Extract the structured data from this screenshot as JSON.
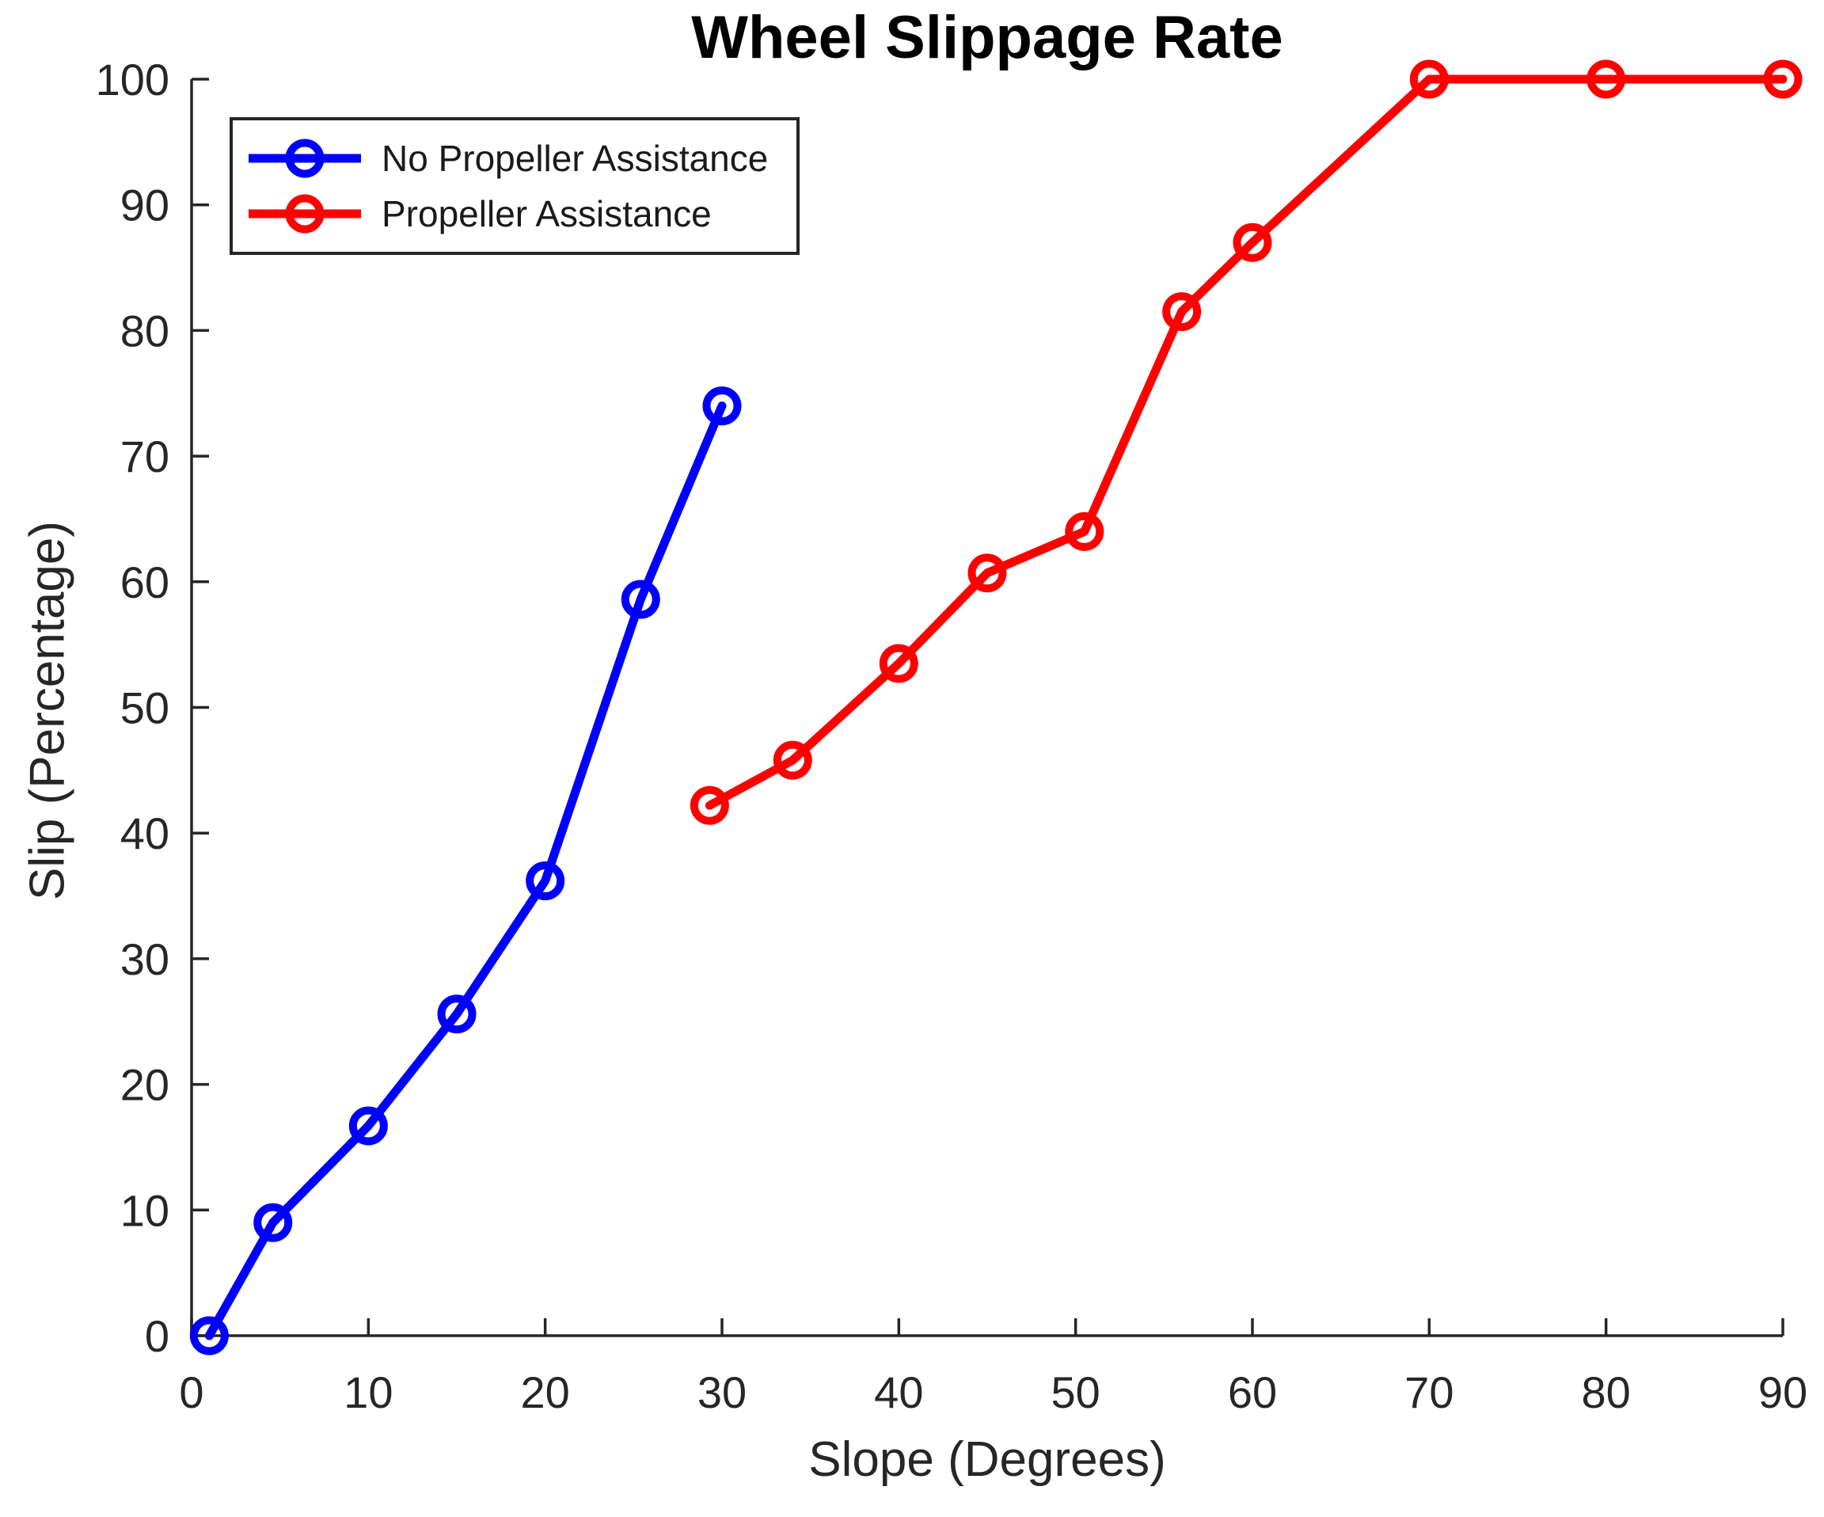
{
  "figure": {
    "background_color": "#ffffff",
    "axis_color": "#262626",
    "title_color": "#000000"
  },
  "chart_data": {
    "type": "line",
    "title": "Wheel Slippage Rate",
    "xlabel": "Slope (Degrees)",
    "ylabel": "Slip (Percentage)",
    "xlim": [
      0,
      90
    ],
    "ylim": [
      0,
      100
    ],
    "x_ticks": [
      0,
      10,
      20,
      30,
      40,
      50,
      60,
      70,
      80,
      90
    ],
    "y_ticks": [
      0,
      10,
      20,
      30,
      40,
      50,
      60,
      70,
      80,
      90,
      100
    ],
    "grid": false,
    "legend_position": "top-left-inside",
    "marker_style": "open-circle",
    "series": [
      {
        "name": "No Propeller Assistance",
        "color": "#0000ff",
        "points": [
          [
            1,
            0
          ],
          [
            4.6,
            9
          ],
          [
            10,
            16.7
          ],
          [
            15,
            25.6
          ],
          [
            20,
            36.2
          ],
          [
            25.4,
            58.6
          ],
          [
            30,
            74
          ]
        ]
      },
      {
        "name": "Propeller Assistance",
        "color": "#ff0000",
        "points": [
          [
            29.3,
            42.2
          ],
          [
            34,
            45.8
          ],
          [
            40,
            53.5
          ],
          [
            45,
            60.7
          ],
          [
            50.5,
            64
          ],
          [
            56,
            81.5
          ],
          [
            60,
            87
          ],
          [
            70,
            100
          ],
          [
            80,
            100
          ],
          [
            90,
            100
          ]
        ]
      }
    ]
  }
}
